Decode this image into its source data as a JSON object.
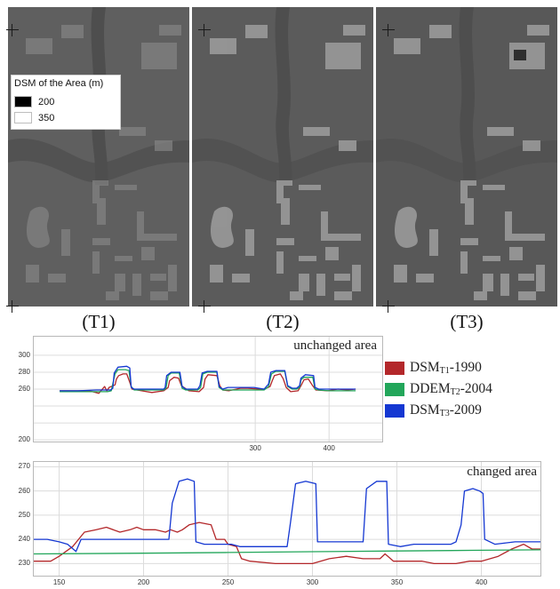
{
  "dsm_legend": {
    "title": "DSM of the Area (m)",
    "items": [
      {
        "label": "200",
        "color": "#000000"
      },
      {
        "label": "350",
        "color": "#ffffff"
      }
    ]
  },
  "panels": [
    {
      "label": "(T1)"
    },
    {
      "label": "(T2)"
    },
    {
      "label": "(T3)"
    }
  ],
  "series_legend": [
    {
      "pre": "DSM",
      "sub": "T1",
      "post": "-1990",
      "color": "#b3272a"
    },
    {
      "pre": "DDEM",
      "sub": "T2",
      "post": "-2004",
      "color": "#22a65a"
    },
    {
      "pre": "DSM",
      "sub": "T3",
      "post": "-2009",
      "color": "#1437d2"
    }
  ],
  "chart_data": [
    {
      "type": "line",
      "annotation": "unchanged area",
      "xlim": [
        0,
        472
      ],
      "ylim": [
        198,
        322
      ],
      "yticks": [
        200,
        220,
        240,
        260,
        280,
        300
      ],
      "yticklabels": [
        "200",
        "",
        "",
        "260",
        "280",
        "300"
      ],
      "xticks": [
        300,
        400
      ],
      "series": [
        {
          "label": "DSMT1-1990",
          "color": "#b3272a",
          "points": [
            [
              35,
              258
            ],
            [
              75,
              258
            ],
            [
              88,
              255
            ],
            [
              96,
              263
            ],
            [
              99,
              258
            ],
            [
              102,
              262
            ],
            [
              110,
              265
            ],
            [
              112,
              272
            ],
            [
              115,
              276
            ],
            [
              121,
              278
            ],
            [
              126,
              278
            ],
            [
              130,
              268
            ],
            [
              133,
              260
            ],
            [
              146,
              258
            ],
            [
              160,
              256
            ],
            [
              176,
              258
            ],
            [
              182,
              262
            ],
            [
              184,
              270
            ],
            [
              190,
              274
            ],
            [
              196,
              273
            ],
            [
              200,
              264
            ],
            [
              210,
              258
            ],
            [
              224,
              257
            ],
            [
              230,
              262
            ],
            [
              232,
              272
            ],
            [
              236,
              277
            ],
            [
              248,
              276
            ],
            [
              252,
              264
            ],
            [
              256,
              259
            ],
            [
              264,
              258
            ],
            [
              280,
              261
            ],
            [
              290,
              261
            ],
            [
              304,
              260
            ],
            [
              312,
              260
            ],
            [
              320,
              263
            ],
            [
              323,
              270
            ],
            [
              326,
              276
            ],
            [
              334,
              278
            ],
            [
              338,
              272
            ],
            [
              342,
              262
            ],
            [
              348,
              257
            ],
            [
              358,
              258
            ],
            [
              362,
              264
            ],
            [
              366,
              271
            ],
            [
              372,
              272
            ],
            [
              377,
              265
            ],
            [
              382,
              259
            ],
            [
              398,
              258
            ],
            [
              412,
              260
            ],
            [
              425,
              259
            ],
            [
              436,
              260
            ]
          ]
        },
        {
          "label": "DDEMT2-2004",
          "color": "#22a65a",
          "points": [
            [
              35,
              257
            ],
            [
              60,
              257
            ],
            [
              85,
              257
            ],
            [
              100,
              257
            ],
            [
              105,
              258
            ],
            [
              110,
              278
            ],
            [
              114,
              283
            ],
            [
              124,
              283
            ],
            [
              129,
              282
            ],
            [
              132,
              263
            ],
            [
              136,
              259
            ],
            [
              176,
              259
            ],
            [
              179,
              261
            ],
            [
              182,
              276
            ],
            [
              186,
              279
            ],
            [
              197,
              279
            ],
            [
              201,
              261
            ],
            [
              206,
              259
            ],
            [
              222,
              259
            ],
            [
              226,
              262
            ],
            [
              229,
              278
            ],
            [
              235,
              280
            ],
            [
              248,
              280
            ],
            [
              251,
              262
            ],
            [
              256,
              259
            ],
            [
              290,
              259
            ],
            [
              312,
              259
            ],
            [
              318,
              263
            ],
            [
              322,
              278
            ],
            [
              328,
              281
            ],
            [
              340,
              281
            ],
            [
              344,
              263
            ],
            [
              350,
              260
            ],
            [
              356,
              260
            ],
            [
              360,
              262
            ],
            [
              362,
              271
            ],
            [
              366,
              274
            ],
            [
              378,
              274
            ],
            [
              381,
              260
            ],
            [
              386,
              259
            ],
            [
              400,
              258
            ],
            [
              436,
              258
            ]
          ]
        },
        {
          "label": "DSMT3-2009",
          "color": "#1437d2",
          "points": [
            [
              35,
              258
            ],
            [
              60,
              258
            ],
            [
              85,
              259
            ],
            [
              104,
              259
            ],
            [
              107,
              261
            ],
            [
              109,
              279
            ],
            [
              114,
              286
            ],
            [
              126,
              287
            ],
            [
              130,
              285
            ],
            [
              132,
              262
            ],
            [
              136,
              260
            ],
            [
              176,
              260
            ],
            [
              178,
              262
            ],
            [
              180,
              276
            ],
            [
              186,
              280
            ],
            [
              198,
              280
            ],
            [
              201,
              263
            ],
            [
              206,
              260
            ],
            [
              222,
              260
            ],
            [
              225,
              264
            ],
            [
              228,
              279
            ],
            [
              235,
              281
            ],
            [
              248,
              281
            ],
            [
              251,
              263
            ],
            [
              256,
              260
            ],
            [
              263,
              262
            ],
            [
              282,
              262
            ],
            [
              298,
              262
            ],
            [
              312,
              260
            ],
            [
              318,
              266
            ],
            [
              321,
              280
            ],
            [
              328,
              282
            ],
            [
              340,
              282
            ],
            [
              344,
              264
            ],
            [
              350,
              261
            ],
            [
              356,
              261
            ],
            [
              360,
              264
            ],
            [
              362,
              273
            ],
            [
              368,
              277
            ],
            [
              379,
              276
            ],
            [
              381,
              262
            ],
            [
              386,
              260
            ],
            [
              400,
              260
            ],
            [
              436,
              260
            ]
          ]
        }
      ]
    },
    {
      "type": "line",
      "annotation": "changed area",
      "xlim": [
        135,
        435
      ],
      "ylim": [
        225,
        272
      ],
      "yticks": [
        230,
        240,
        250,
        260,
        270
      ],
      "xticks": [
        150,
        200,
        250,
        300,
        350,
        400
      ],
      "series": [
        {
          "label": "DSMT1-1990",
          "color": "#b3272a",
          "points": [
            [
              135,
              231
            ],
            [
              145,
              231
            ],
            [
              150,
              233
            ],
            [
              158,
              237
            ],
            [
              165,
              243
            ],
            [
              172,
              244
            ],
            [
              178,
              245
            ],
            [
              186,
              243
            ],
            [
              192,
              244
            ],
            [
              196,
              245
            ],
            [
              200,
              244
            ],
            [
              207,
              244
            ],
            [
              213,
              243
            ],
            [
              216,
              244
            ],
            [
              220,
              243
            ],
            [
              223,
              244
            ],
            [
              227,
              246
            ],
            [
              233,
              247
            ],
            [
              240,
              246
            ],
            [
              243,
              240
            ],
            [
              248,
              240
            ],
            [
              250,
              238
            ],
            [
              255,
              237
            ],
            [
              258,
              232
            ],
            [
              263,
              231
            ],
            [
              278,
              230
            ],
            [
              300,
              230
            ],
            [
              310,
              232
            ],
            [
              320,
              233
            ],
            [
              330,
              232
            ],
            [
              340,
              232
            ],
            [
              343,
              234
            ],
            [
              348,
              231
            ],
            [
              365,
              231
            ],
            [
              372,
              230
            ],
            [
              385,
              230
            ],
            [
              393,
              231
            ],
            [
              400,
              231
            ],
            [
              410,
              233
            ],
            [
              418,
              236
            ],
            [
              425,
              238
            ],
            [
              430,
              236
            ],
            [
              435,
              236
            ]
          ]
        },
        {
          "label": "DDEMT2-2004",
          "color": "#22a65a",
          "points": [
            [
              135,
              234
            ],
            [
              200,
              234.3
            ],
            [
              250,
              234.6
            ],
            [
              300,
              234.9
            ],
            [
              350,
              235.2
            ],
            [
              400,
              235.5
            ],
            [
              435,
              235.7
            ]
          ]
        },
        {
          "label": "DSMT3-2009",
          "color": "#1437d2",
          "points": [
            [
              135,
              240
            ],
            [
              143,
              240
            ],
            [
              150,
              239
            ],
            [
              155,
              238
            ],
            [
              160,
              235
            ],
            [
              163,
              240
            ],
            [
              170,
              240
            ],
            [
              200,
              240
            ],
            [
              215,
              240
            ],
            [
              217,
              255
            ],
            [
              221,
              264
            ],
            [
              226,
              265
            ],
            [
              230,
              264
            ],
            [
              231,
              239
            ],
            [
              236,
              238
            ],
            [
              244,
              238
            ],
            [
              252,
              238
            ],
            [
              257,
              237
            ],
            [
              270,
              237
            ],
            [
              285,
              237
            ],
            [
              287,
              247
            ],
            [
              290,
              263
            ],
            [
              296,
              264
            ],
            [
              302,
              263
            ],
            [
              303,
              239
            ],
            [
              315,
              239
            ],
            [
              330,
              239
            ],
            [
              332,
              261
            ],
            [
              338,
              264
            ],
            [
              344,
              264
            ],
            [
              345,
              238
            ],
            [
              352,
              237
            ],
            [
              360,
              238
            ],
            [
              370,
              238
            ],
            [
              382,
              238
            ],
            [
              385,
              239
            ],
            [
              388,
              246
            ],
            [
              390,
              260
            ],
            [
              395,
              261
            ],
            [
              399,
              260
            ],
            [
              401,
              259
            ],
            [
              402,
              240
            ],
            [
              408,
              238
            ],
            [
              420,
              239
            ],
            [
              435,
              239
            ]
          ]
        }
      ]
    }
  ]
}
